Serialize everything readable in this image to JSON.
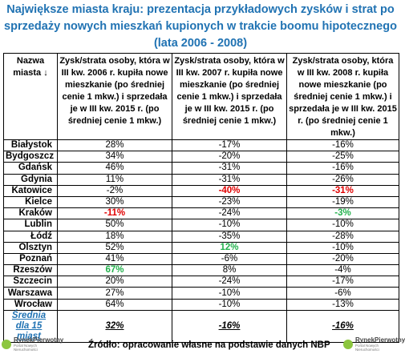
{
  "title": "Największe miasta kraju: prezentacja przykładowych zysków i strat po sprzedaży nowych mieszkań kupionych w trakcie boomu hipotecznego (lata 2006 - 2008)",
  "table": {
    "header": [
      "Nazwa miasta ↓",
      "Zysk/strata osoby, która w III kw. 2006 r. kupiła nowe mieszkanie (po średniej cenie 1 mkw.) i sprzedała je w III kw. 2015 r. (po średniej cenie 1 mkw.)",
      "Zysk/strata osoby, która w III kw. 2007 r. kupiła nowe mieszkanie (po średniej cenie 1 mkw.) i sprzedała je w III kw. 2015 r. (po średniej cenie 1 mkw.)",
      "Zysk/strata osoby, która w III kw. 2008 r. kupiła nowe mieszkanie (po średniej cenie 1 mkw.) i sprzedała je w III kw. 2015 r. (po średniej cenie 1 mkw.)"
    ],
    "rows": [
      [
        "Białystok",
        "28%",
        "-17%",
        "-16%"
      ],
      [
        "Bydgoszcz",
        "34%",
        "-20%",
        "-25%"
      ],
      [
        "Gdańsk",
        "46%",
        "-31%",
        "-16%"
      ],
      [
        "Gdynia",
        "11%",
        "-31%",
        "-26%"
      ],
      [
        "Katowice",
        "-2%",
        {
          "text": "-40%",
          "color": "#e00000"
        },
        {
          "text": "-31%",
          "color": "#e00000"
        }
      ],
      [
        "Kielce",
        "30%",
        "-23%",
        "-19%"
      ],
      [
        "Kraków",
        {
          "text": "-11%",
          "color": "#e00000"
        },
        "-24%",
        {
          "text": "-3%",
          "color": "#22b14c"
        }
      ],
      [
        "Lublin",
        "50%",
        "-10%",
        "-10%"
      ],
      [
        "Łódź",
        "18%",
        "-35%",
        "-28%"
      ],
      [
        "Olsztyn",
        "52%",
        {
          "text": "12%",
          "color": "#22b14c"
        },
        "-10%"
      ],
      [
        "Poznań",
        "41%",
        "-6%",
        "-20%"
      ],
      [
        "Rzeszów",
        {
          "text": "67%",
          "color": "#22b14c"
        },
        "8%",
        "-4%"
      ],
      [
        "Szczecin",
        "20%",
        "-24%",
        "-17%"
      ],
      [
        "Warszawa",
        "27%",
        "-10%",
        "-6%"
      ],
      [
        "Wrocław",
        "64%",
        "-10%",
        "-13%"
      ]
    ],
    "average": [
      "Średnia dla 15 miast",
      "32%",
      "-16%",
      "-16%"
    ]
  },
  "source": "Źródło: opracowanie własne na podstawie danych NBP",
  "logo": {
    "name": "RynekPierwotny",
    "tagline": "Portal Nowych Nieruchomości"
  }
}
